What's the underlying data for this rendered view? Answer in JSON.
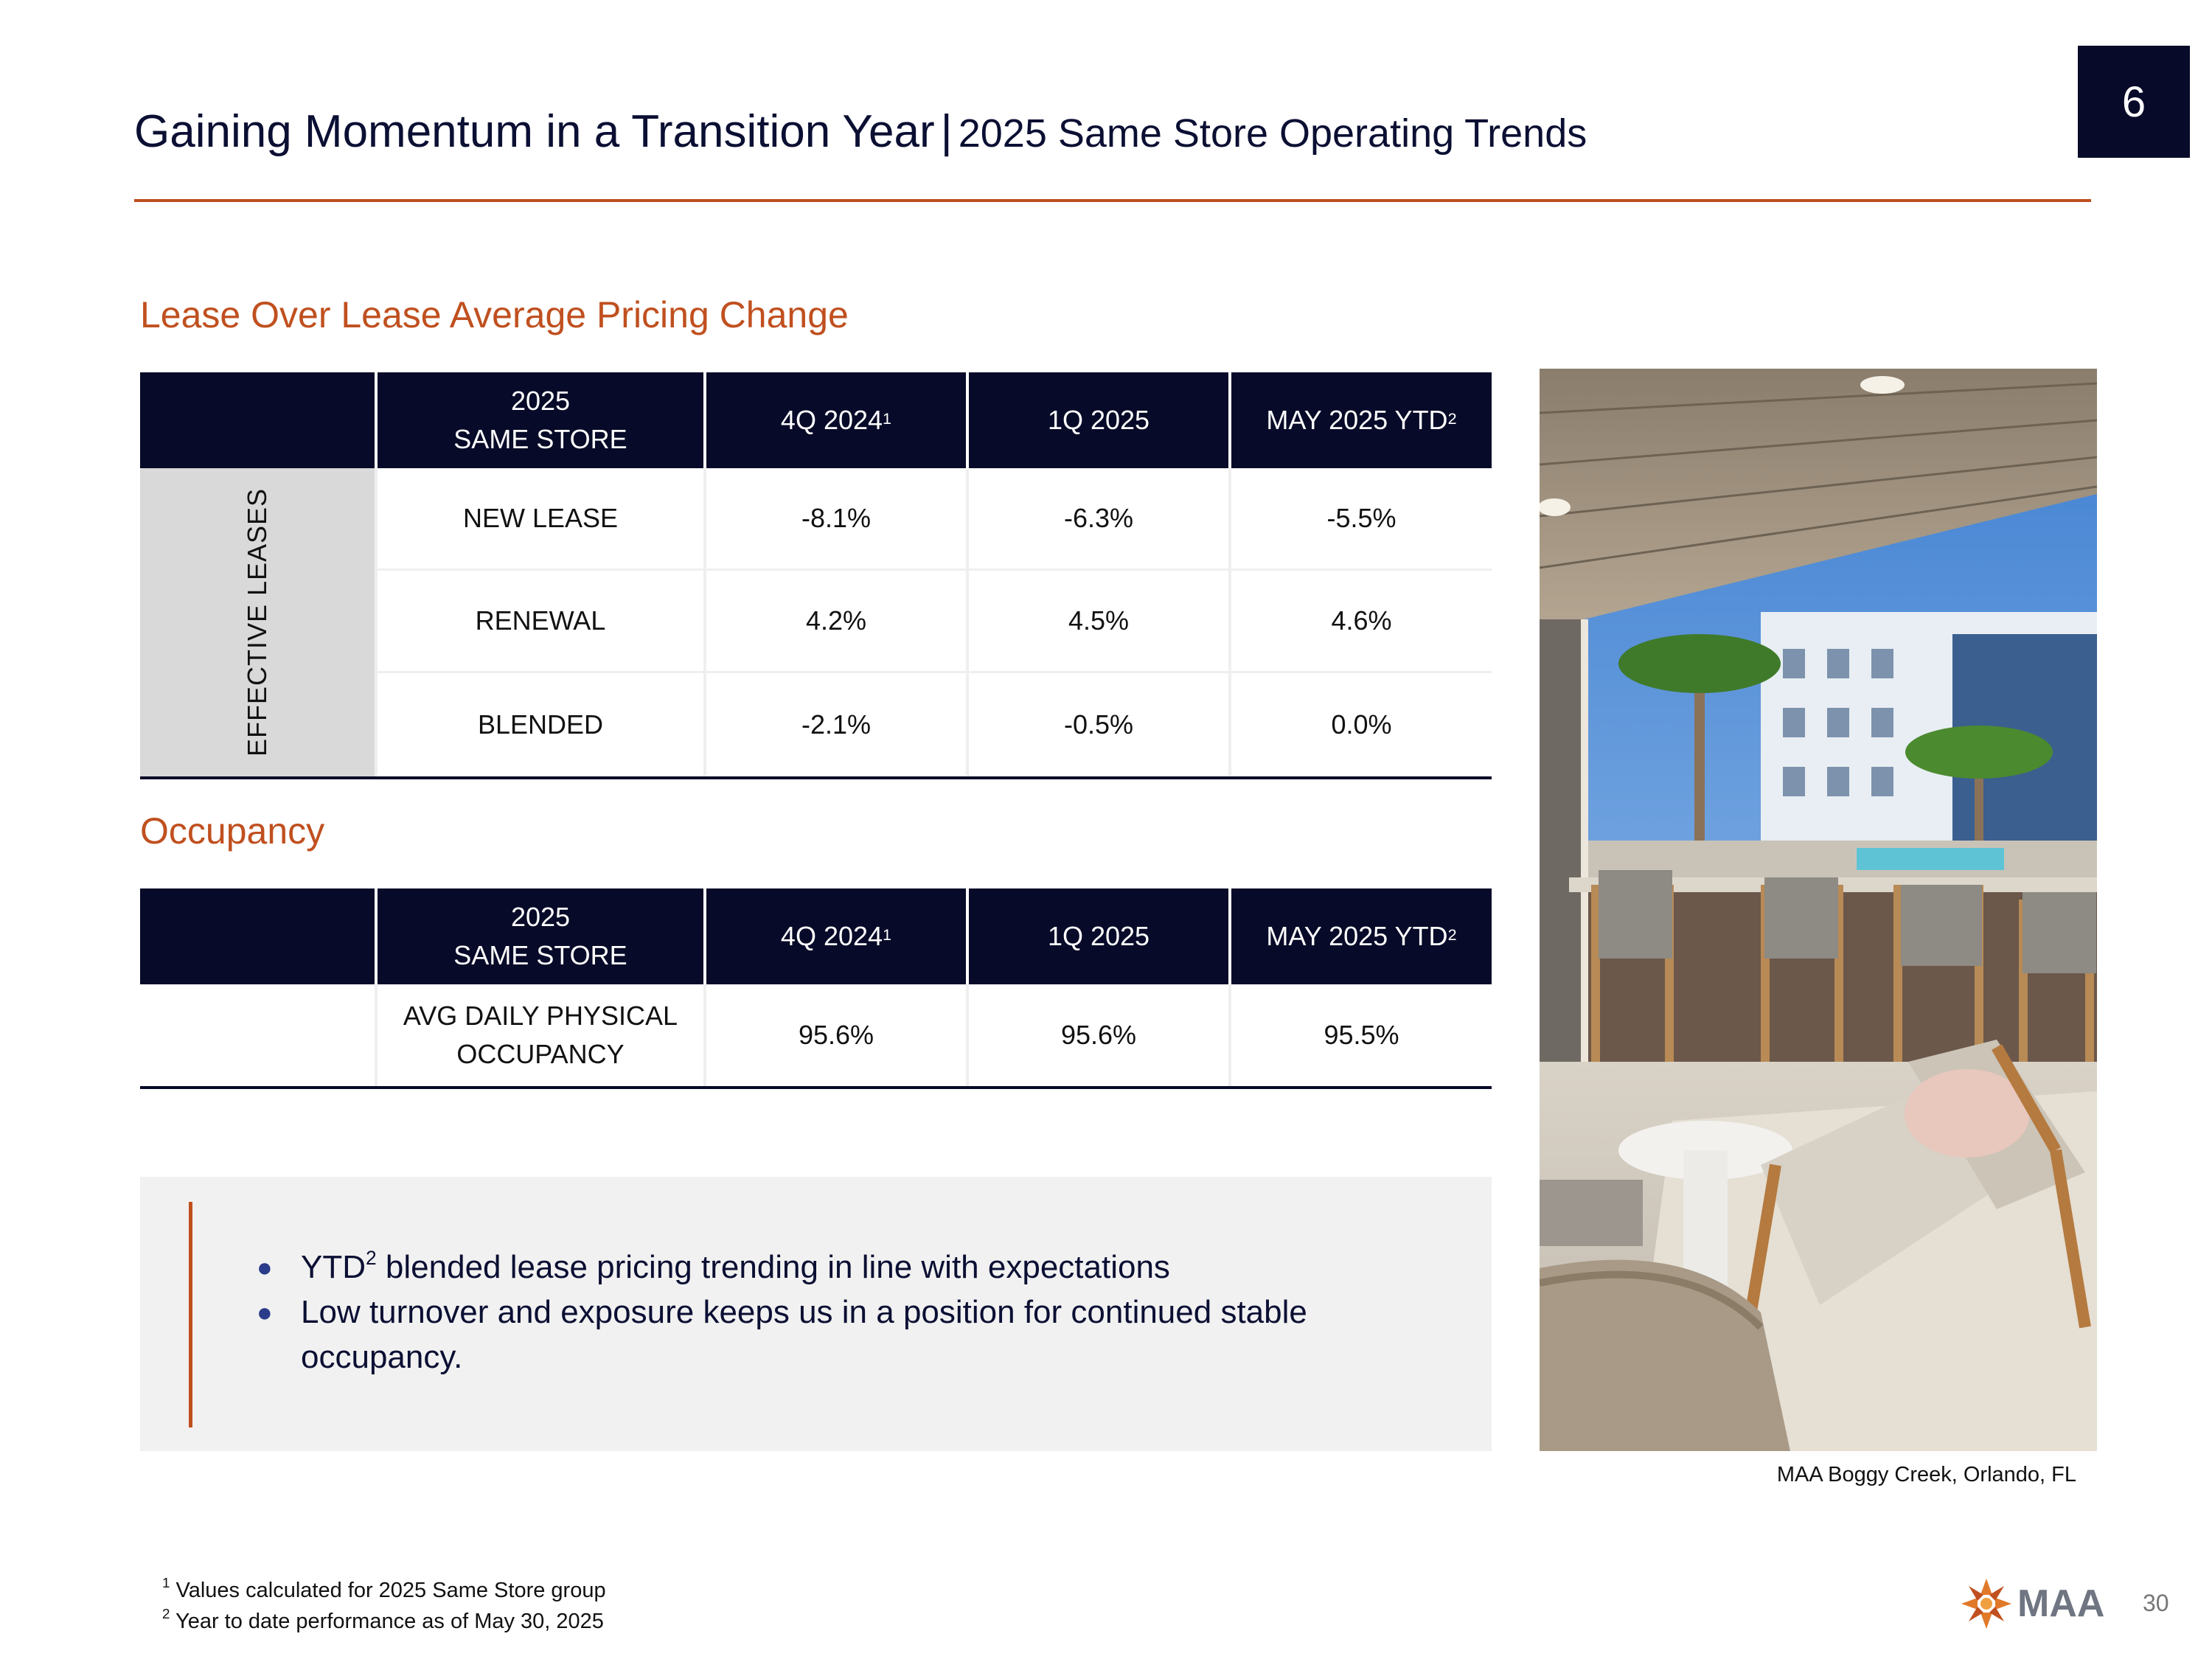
{
  "header": {
    "title": "Gaining Momentum in a Transition Year",
    "separator": "|",
    "subtitle": "2025 Same Store Operating Trends",
    "slide_number": "6"
  },
  "lease_section": {
    "heading": "Lease Over Lease Average Pricing Change",
    "columns": {
      "c1_line1": "2025",
      "c1_line2": "SAME STORE",
      "c2": "4Q 2024",
      "c2_sup": "1",
      "c3": "1Q 2025",
      "c4": "MAY 2025 YTD",
      "c4_sup": "2"
    },
    "side_label": "EFFECTIVE LEASES",
    "rows": [
      {
        "label": "NEW LEASE",
        "q4_2024": "-8.1%",
        "q1_2025": "-6.3%",
        "may_2025_ytd": "-5.5%"
      },
      {
        "label": "RENEWAL",
        "q4_2024": "4.2%",
        "q1_2025": "4.5%",
        "may_2025_ytd": "4.6%"
      },
      {
        "label": "BLENDED",
        "q4_2024": "-2.1%",
        "q1_2025": "-0.5%",
        "may_2025_ytd": "0.0%"
      }
    ]
  },
  "occupancy_section": {
    "heading": "Occupancy",
    "columns": {
      "c1_line1": "2025",
      "c1_line2": "SAME STORE",
      "c2": "4Q 2024",
      "c2_sup": "1",
      "c3": "1Q 2025",
      "c4": "MAY 2025 YTD",
      "c4_sup": "2"
    },
    "rows": [
      {
        "label_line1": "AVG DAILY PHYSICAL",
        "label_line2": "OCCUPANCY",
        "q4_2024": "95.6%",
        "q1_2025": "95.6%",
        "may_2025_ytd": "95.5%"
      }
    ]
  },
  "callout": {
    "bullet1_prefix": "YTD",
    "bullet1_sup": "2",
    "bullet1_rest": " blended lease pricing trending in line with expectations",
    "bullet2": "Low turnover and exposure keeps us in a position for continued stable occupancy."
  },
  "photo": {
    "caption": "MAA Boggy Creek, Orlando, FL"
  },
  "footnotes": {
    "n1_mark": "1",
    "n1_text": " Values calculated for 2025 Same Store group",
    "n2_mark": "2",
    "n2_text": " Year to date performance as of May 30, 2025"
  },
  "footer": {
    "logo_text": "MAA",
    "page_number": "30"
  },
  "colors": {
    "navy": "#070a28",
    "accent_orange": "#c0501f",
    "side_gray": "#d9d9d9",
    "callout_bg": "#f1f1f1"
  }
}
